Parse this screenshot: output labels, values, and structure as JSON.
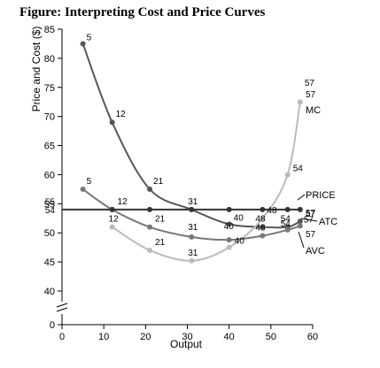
{
  "chart_data": {
    "type": "line",
    "title": "Figure: Interpreting Cost and Price Curves",
    "xlabel": "Output",
    "ylabel": "Price and Cost ($)",
    "xlim": [
      0,
      60
    ],
    "ylim": [
      35,
      85
    ],
    "x_ticks": [
      "0",
      "10",
      "20",
      "30",
      "40",
      "50",
      "60"
    ],
    "y_ticks": [
      "0",
      "40",
      "45",
      "50",
      "55",
      "60",
      "65",
      "70",
      "75",
      "80",
      "85"
    ],
    "y_axis_break": true,
    "extra_y_labels": [
      {
        "text": "55",
        "y": 55
      },
      {
        "text": "54",
        "y": 54
      }
    ],
    "grid": false,
    "legend": "none",
    "series": [
      {
        "name": "MC",
        "color": "#555555",
        "x": [
          5,
          12,
          21,
          31,
          40,
          48,
          54,
          57
        ],
        "y": [
          82.5,
          69,
          57.5,
          54,
          51.5,
          51,
          51,
          52
        ],
        "labels": [
          "5",
          "12",
          "21",
          "31",
          "40",
          "48",
          "54",
          "57"
        ]
      },
      {
        "name": "MC",
        "color": "#bbbbbb",
        "x": [
          12,
          21,
          31,
          40,
          48,
          54,
          57
        ],
        "y": [
          51,
          47,
          45.2,
          47.5,
          52.5,
          60,
          72.5
        ],
        "labels": [
          "12",
          "21",
          "31",
          "40",
          "48",
          "54",
          "57"
        ]
      },
      {
        "name": "ATC",
        "color": "#777777",
        "x": [
          5,
          12,
          21,
          31,
          40,
          48,
          54,
          57
        ],
        "y": [
          57.5,
          54,
          51,
          49.3,
          48.8,
          49.5,
          50.5,
          51.2
        ],
        "labels": [
          "5",
          "12",
          "21",
          "31",
          "40",
          "48",
          "54",
          "57"
        ]
      },
      {
        "name": "PRICE",
        "color": "#333333",
        "x": [
          0,
          12,
          21,
          31,
          40,
          48,
          54,
          57
        ],
        "y": [
          54,
          54,
          54,
          54,
          54,
          54,
          54,
          54
        ],
        "labels": [
          "",
          "",
          "",
          "",
          "",
          "",
          "",
          ""
        ]
      }
    ],
    "curve_labels": [
      "MC",
      "PRICE",
      "ATC",
      "AVC"
    ],
    "curve_label_markers": [
      "57",
      "57",
      "57"
    ]
  }
}
